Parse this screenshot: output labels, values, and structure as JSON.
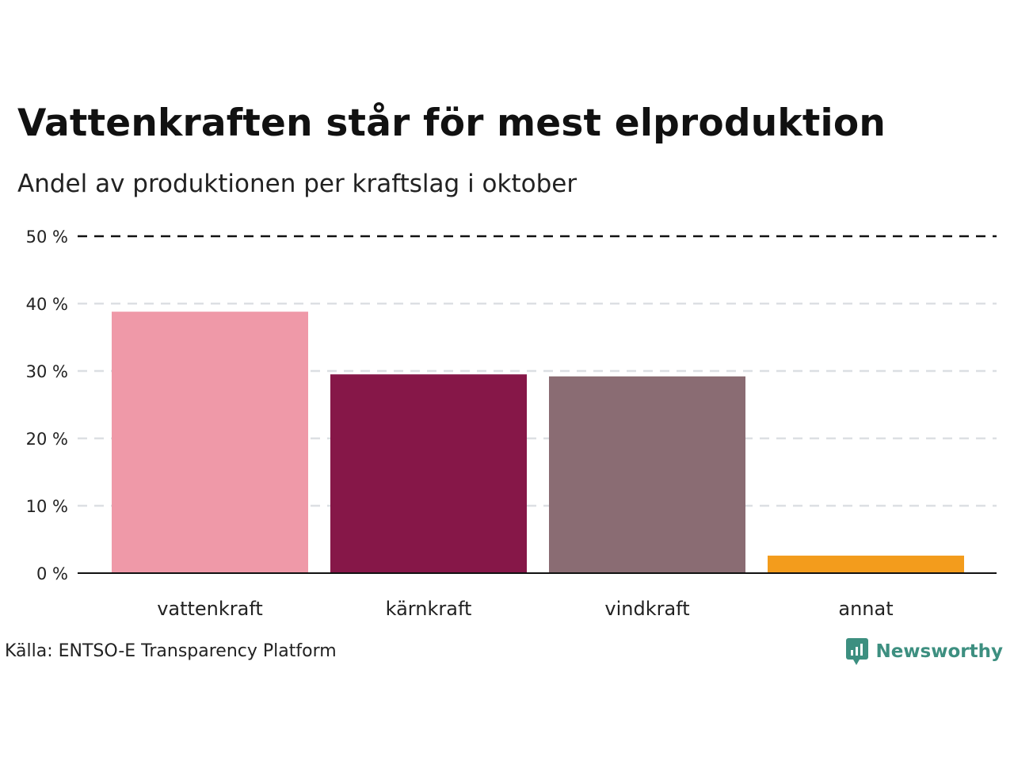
{
  "title": "Vattenkraften står för mest elproduktion",
  "subtitle": "Andel av produktionen per kraftslag i oktober",
  "source": "Källa: ENTSO-E Transparency Platform",
  "brand": "Newsworthy",
  "colors": {
    "vattenkraft": "#ef99a8",
    "karnkraft": "#861748",
    "vindkraft": "#8a6c73",
    "annat": "#f39c1c",
    "grid": "#dcdfe3",
    "brand": "#3d8f80"
  },
  "chart_data": {
    "type": "bar",
    "title": "Vattenkraften står för mest elproduktion",
    "subtitle": "Andel av produktionen per kraftslag i oktober",
    "xlabel": "",
    "ylabel": "",
    "categories": [
      "vattenkraft",
      "kärnkraft",
      "vindkraft",
      "annat"
    ],
    "values": [
      38.8,
      29.5,
      29.2,
      2.6
    ],
    "ylim": [
      0,
      50
    ],
    "yticks": [
      0,
      10,
      20,
      30,
      40,
      50
    ],
    "ytick_labels": [
      "0 %",
      "10 %",
      "20 %",
      "30 %",
      "40 %",
      "50 %"
    ],
    "grid": true,
    "legend": "none"
  }
}
